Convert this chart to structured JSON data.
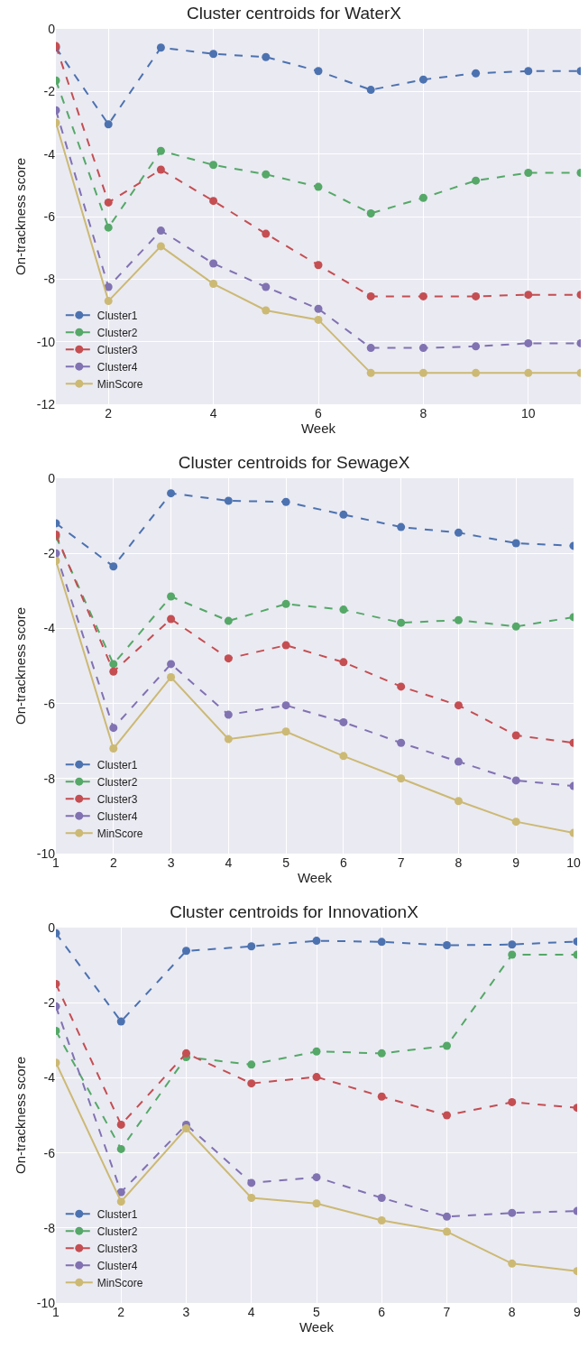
{
  "chart_data": [
    {
      "type": "line",
      "title": "Cluster centroids for WaterX",
      "xlabel": "Week",
      "ylabel": "On-trackness score",
      "x": [
        1,
        2,
        3,
        4,
        5,
        6,
        7,
        8,
        9,
        10,
        11
      ],
      "xlim": [
        1,
        11
      ],
      "xticks": [
        2,
        4,
        6,
        8,
        10
      ],
      "ylim": [
        -12,
        0
      ],
      "yticks": [
        -12,
        -10,
        -8,
        -6,
        -4,
        -2,
        0
      ],
      "grid": true,
      "legend": "bottom left",
      "marker": "circle",
      "series": [
        {
          "name": "Cluster1",
          "color": "#4c72b0",
          "line_style": "dashed",
          "values": [
            -0.6,
            -3.05,
            -0.6,
            -0.8,
            -0.9,
            -1.35,
            -1.95,
            -1.62,
            -1.42,
            -1.35,
            -1.35
          ]
        },
        {
          "name": "Cluster2",
          "color": "#55a868",
          "line_style": "dashed",
          "values": [
            -1.65,
            -6.35,
            -3.9,
            -4.35,
            -4.65,
            -5.05,
            -5.9,
            -5.4,
            -4.85,
            -4.6,
            -4.6
          ]
        },
        {
          "name": "Cluster3",
          "color": "#c44e52",
          "line_style": "dashed",
          "values": [
            -0.55,
            -5.55,
            -4.5,
            -5.5,
            -6.55,
            -7.55,
            -8.55,
            -8.55,
            -8.55,
            -8.5,
            -8.5
          ]
        },
        {
          "name": "Cluster4",
          "color": "#8172b2",
          "line_style": "dashed",
          "values": [
            -2.6,
            -8.25,
            -6.45,
            -7.5,
            -8.25,
            -8.95,
            -10.2,
            -10.2,
            -10.15,
            -10.05,
            -10.05
          ]
        },
        {
          "name": "MinScore",
          "color": "#ccb974",
          "line_style": "solid",
          "values": [
            -3,
            -8.7,
            -6.95,
            -8.15,
            -9,
            -9.3,
            -11,
            -11,
            -11,
            -11,
            -11
          ]
        }
      ]
    },
    {
      "type": "line",
      "title": "Cluster centroids for SewageX",
      "xlabel": "Week",
      "ylabel": "On-trackness score",
      "x": [
        1,
        2,
        3,
        4,
        5,
        6,
        7,
        8,
        9,
        10
      ],
      "xlim": [
        1,
        10
      ],
      "xticks": [
        1,
        2,
        3,
        4,
        5,
        6,
        7,
        8,
        9,
        10
      ],
      "ylim": [
        -10,
        0
      ],
      "yticks": [
        -10,
        -8,
        -6,
        -4,
        -2,
        0
      ],
      "grid": true,
      "legend": "bottom left",
      "marker": "circle",
      "series": [
        {
          "name": "Cluster1",
          "color": "#4c72b0",
          "line_style": "dashed",
          "values": [
            -1.2,
            -2.35,
            -0.4,
            -0.6,
            -0.63,
            -0.97,
            -1.3,
            -1.45,
            -1.73,
            -1.8
          ]
        },
        {
          "name": "Cluster2",
          "color": "#55a868",
          "line_style": "dashed",
          "values": [
            -1.55,
            -4.95,
            -3.15,
            -3.8,
            -3.35,
            -3.5,
            -3.85,
            -3.78,
            -3.95,
            -3.7
          ]
        },
        {
          "name": "Cluster3",
          "color": "#c44e52",
          "line_style": "dashed",
          "values": [
            -1.5,
            -5.15,
            -3.75,
            -4.8,
            -4.45,
            -4.9,
            -5.55,
            -6.05,
            -6.85,
            -7.05
          ]
        },
        {
          "name": "Cluster4",
          "color": "#8172b2",
          "line_style": "dashed",
          "values": [
            -2,
            -6.65,
            -4.95,
            -6.3,
            -6.05,
            -6.5,
            -7.05,
            -7.55,
            -8.05,
            -8.2
          ]
        },
        {
          "name": "MinScore",
          "color": "#ccb974",
          "line_style": "solid",
          "values": [
            -2.2,
            -7.2,
            -5.3,
            -6.95,
            -6.75,
            -7.4,
            -8,
            -8.6,
            -9.15,
            -9.45
          ]
        }
      ]
    },
    {
      "type": "line",
      "title": "Cluster centroids for InnovationX",
      "xlabel": "Week",
      "ylabel": "On-trackness score",
      "x": [
        1,
        2,
        3,
        4,
        5,
        6,
        7,
        8,
        9
      ],
      "xlim": [
        1,
        9
      ],
      "xticks": [
        1,
        2,
        3,
        4,
        5,
        6,
        7,
        8,
        9
      ],
      "ylim": [
        -10,
        0
      ],
      "yticks": [
        -10,
        -8,
        -6,
        -4,
        -2,
        0
      ],
      "grid": true,
      "legend": "bottom left",
      "marker": "circle",
      "series": [
        {
          "name": "Cluster1",
          "color": "#4c72b0",
          "line_style": "dashed",
          "values": [
            -0.15,
            -2.5,
            -0.62,
            -0.5,
            -0.35,
            -0.38,
            -0.47,
            -0.45,
            -0.37
          ]
        },
        {
          "name": "Cluster2",
          "color": "#55a868",
          "line_style": "dashed",
          "values": [
            -2.75,
            -5.9,
            -3.45,
            -3.65,
            -3.3,
            -3.35,
            -3.15,
            -0.72,
            -0.72
          ]
        },
        {
          "name": "Cluster3",
          "color": "#c44e52",
          "line_style": "dashed",
          "values": [
            -1.5,
            -5.25,
            -3.35,
            -4.15,
            -3.98,
            -4.5,
            -5,
            -4.65,
            -4.8
          ]
        },
        {
          "name": "Cluster4",
          "color": "#8172b2",
          "line_style": "dashed",
          "values": [
            -2.1,
            -7.05,
            -5.25,
            -6.8,
            -6.65,
            -7.2,
            -7.7,
            -7.6,
            -7.55
          ]
        },
        {
          "name": "MinScore",
          "color": "#ccb974",
          "line_style": "solid",
          "values": [
            -3.6,
            -7.3,
            -5.35,
            -7.2,
            -7.35,
            -7.8,
            -8.1,
            -8.95,
            -9.15
          ]
        }
      ]
    }
  ]
}
